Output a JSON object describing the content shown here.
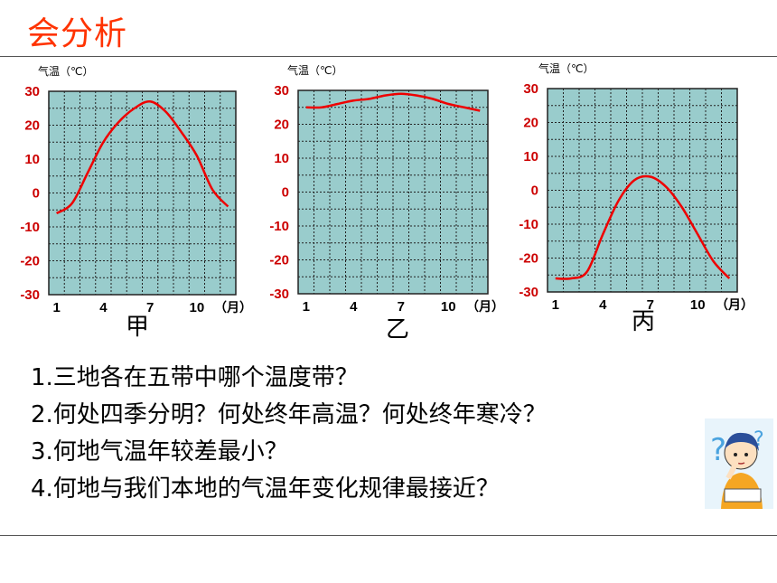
{
  "slide": {
    "title": "会分析",
    "questions": [
      "1.三地各在五带中哪个温度带？",
      "2.何处四季分明？何处终年高温？何处终年寒冷？",
      "3.何地气温年较差最小？",
      "4.何地与我们本地的气温年变化规律最接近？"
    ]
  },
  "colors": {
    "accent": "#ff3300",
    "line": "#ee0000",
    "plot_bg": "#99cccc",
    "axis_text": "#cc0000"
  },
  "decoration": {
    "figure": "student-thinking-cartoon"
  },
  "chart_data": [
    {
      "type": "line",
      "name_label": "甲",
      "ylabel": "气温（℃）",
      "ylim": [
        -30,
        30
      ],
      "yticks": [
        "30",
        "20",
        "10",
        "0",
        "-10",
        "-20",
        "-30"
      ],
      "xticks": [
        "1",
        "4",
        "7",
        "10"
      ],
      "xunit": "（月）",
      "grid": true,
      "x": [
        1,
        2,
        3,
        4,
        5,
        6,
        7,
        8,
        9,
        10,
        11,
        12
      ],
      "values": [
        -6,
        -3,
        6,
        15,
        21,
        25,
        27,
        24,
        18,
        11,
        1,
        -4
      ]
    },
    {
      "type": "line",
      "name_label": "乙",
      "ylabel": "气温（℃）",
      "ylim": [
        -30,
        30
      ],
      "yticks": [
        "30",
        "20",
        "10",
        "0",
        "-10",
        "-20",
        "-30"
      ],
      "xticks": [
        "1",
        "4",
        "7",
        "10"
      ],
      "xunit": "（月）",
      "grid": true,
      "x": [
        1,
        2,
        3,
        4,
        5,
        6,
        7,
        8,
        9,
        10,
        11,
        12
      ],
      "values": [
        25,
        25,
        26,
        27,
        27.5,
        28.5,
        29,
        28.5,
        27.5,
        26,
        25,
        24
      ]
    },
    {
      "type": "line",
      "name_label": "丙",
      "ylabel": "气温（℃）",
      "ylim": [
        -30,
        30
      ],
      "yticks": [
        "30",
        "20",
        "10",
        "0",
        "-10",
        "-20",
        "-30"
      ],
      "xticks": [
        "1",
        "4",
        "7",
        "10"
      ],
      "xunit": "（月）",
      "grid": true,
      "x": [
        1,
        2,
        3,
        4,
        5,
        6,
        7,
        8,
        9,
        10,
        11,
        12
      ],
      "values": [
        -26,
        -26,
        -24,
        -13,
        -3,
        3,
        4,
        1,
        -5,
        -13,
        -21,
        -26
      ]
    }
  ]
}
